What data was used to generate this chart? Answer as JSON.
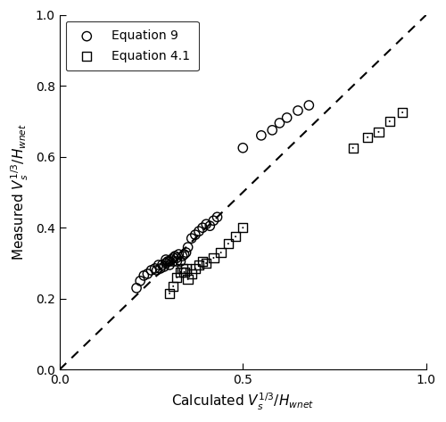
{
  "eq9_x": [
    0.21,
    0.22,
    0.23,
    0.24,
    0.25,
    0.26,
    0.265,
    0.27,
    0.275,
    0.28,
    0.285,
    0.29,
    0.29,
    0.295,
    0.3,
    0.3,
    0.305,
    0.31,
    0.31,
    0.315,
    0.32,
    0.32,
    0.325,
    0.33,
    0.335,
    0.34,
    0.345,
    0.35,
    0.36,
    0.37,
    0.38,
    0.39,
    0.4,
    0.41,
    0.42,
    0.43,
    0.5,
    0.55,
    0.58,
    0.6,
    0.62,
    0.65,
    0.68
  ],
  "eq9_y": [
    0.23,
    0.25,
    0.265,
    0.27,
    0.28,
    0.285,
    0.28,
    0.295,
    0.285,
    0.295,
    0.29,
    0.3,
    0.31,
    0.305,
    0.295,
    0.305,
    0.31,
    0.305,
    0.315,
    0.32,
    0.305,
    0.315,
    0.325,
    0.305,
    0.32,
    0.325,
    0.33,
    0.345,
    0.37,
    0.38,
    0.39,
    0.4,
    0.41,
    0.405,
    0.42,
    0.43,
    0.625,
    0.66,
    0.675,
    0.695,
    0.71,
    0.73,
    0.745
  ],
  "eq41_x": [
    0.3,
    0.31,
    0.32,
    0.33,
    0.335,
    0.34,
    0.345,
    0.35,
    0.36,
    0.37,
    0.38,
    0.39,
    0.4,
    0.42,
    0.44,
    0.46,
    0.48,
    0.5,
    0.8,
    0.84,
    0.87,
    0.9,
    0.935
  ],
  "eq41_y": [
    0.215,
    0.235,
    0.26,
    0.275,
    0.285,
    0.275,
    0.285,
    0.255,
    0.27,
    0.285,
    0.295,
    0.305,
    0.3,
    0.315,
    0.33,
    0.355,
    0.375,
    0.4,
    0.625,
    0.655,
    0.67,
    0.7,
    0.725
  ],
  "xlim": [
    0.0,
    1.0
  ],
  "ylim": [
    0.0,
    1.0
  ],
  "xticks": [
    0.0,
    0.5,
    1.0
  ],
  "yticks": [
    0.0,
    0.2,
    0.4,
    0.6,
    0.8,
    1.0
  ],
  "xlabel": "Calculated $V_s^{1/3}/H_{wnet}$",
  "ylabel": "Measured $V_s^{1/3}/H_{wnet}$",
  "legend_eq9": "Equation 9",
  "legend_eq41": "Equation 4.1",
  "marker_color": "black",
  "bg_color": "white",
  "dashed_line_color": "black",
  "figsize": [
    5.0,
    4.73
  ],
  "dpi": 100
}
